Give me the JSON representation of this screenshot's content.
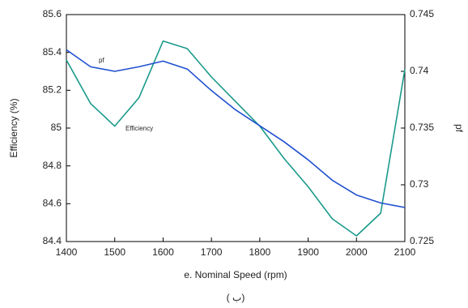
{
  "chart_data": {
    "type": "line",
    "x_label": "e. Nominal Speed (rpm)",
    "y_label": "Efficiency (%)",
    "y2_label": "pf",
    "caption": "( ب)",
    "annotations": [
      "pf",
      "Efficiency"
    ],
    "x": [
      1400,
      1450,
      1500,
      1550,
      1600,
      1650,
      1700,
      1750,
      1800,
      1850,
      1900,
      1950,
      2000,
      2050,
      2100
    ],
    "xlim": [
      1400,
      2100
    ],
    "xticks": [
      1400,
      1500,
      1600,
      1700,
      1800,
      1900,
      2000,
      2100
    ],
    "ylim": [
      84.4,
      85.6
    ],
    "yticks": [
      84.4,
      84.6,
      84.8,
      85,
      85.2,
      85.4,
      85.6
    ],
    "y2lim": [
      0.725,
      0.745
    ],
    "y2ticks": [
      0.725,
      0.73,
      0.735,
      0.74,
      0.745
    ],
    "series": [
      {
        "name": "Efficiency",
        "color": "#1a9a8a",
        "values": [
          85.36,
          85.13,
          85.01,
          85.16,
          85.46,
          85.42,
          85.27,
          85.14,
          85.01,
          84.84,
          84.69,
          84.52,
          84.43,
          84.55,
          85.31
        ]
      },
      {
        "name": "pf",
        "color": "#2050d0",
        "axis": "y2",
        "values": [
          0.7419,
          0.7404,
          0.74,
          0.7404,
          0.7409,
          0.7402,
          0.7383,
          0.7366,
          0.7352,
          0.7338,
          0.7322,
          0.7304,
          0.7291,
          0.7284,
          0.728
        ]
      }
    ]
  }
}
